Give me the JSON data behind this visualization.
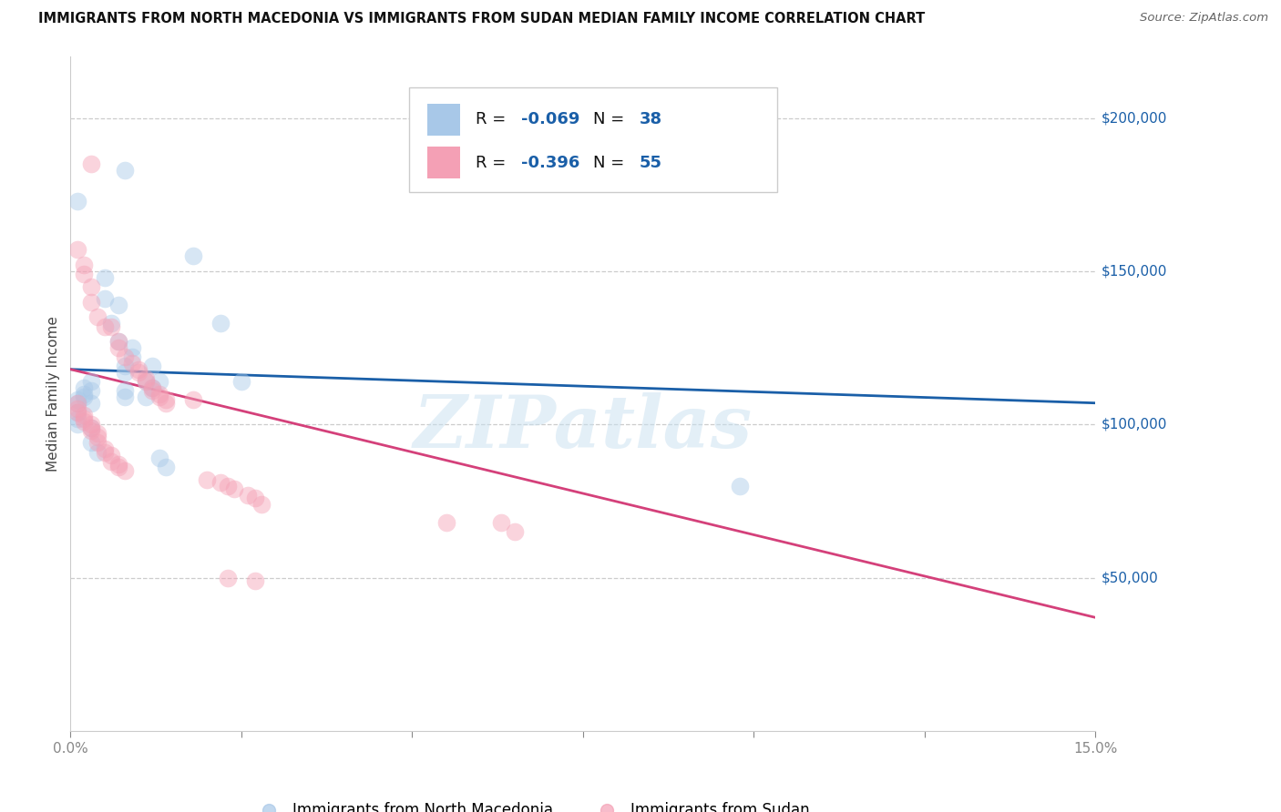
{
  "title": "IMMIGRANTS FROM NORTH MACEDONIA VS IMMIGRANTS FROM SUDAN MEDIAN FAMILY INCOME CORRELATION CHART",
  "source": "Source: ZipAtlas.com",
  "ylabel": "Median Family Income",
  "xmin": 0.0,
  "xmax": 0.15,
  "ymin": 0,
  "ymax": 220000,
  "color_blue": "#a8c8e8",
  "color_pink": "#f4a0b5",
  "line_color_blue": "#1a5fa8",
  "line_color_pink": "#d4407a",
  "watermark": "ZIPatlas",
  "legend_r_blue": "-0.069",
  "legend_n_blue": "38",
  "legend_r_pink": "-0.396",
  "legend_n_pink": "55",
  "blue_dots": [
    [
      0.001,
      173000
    ],
    [
      0.008,
      183000
    ],
    [
      0.005,
      148000
    ],
    [
      0.005,
      141000
    ],
    [
      0.007,
      139000
    ],
    [
      0.006,
      133000
    ],
    [
      0.007,
      127000
    ],
    [
      0.009,
      125000
    ],
    [
      0.009,
      122000
    ],
    [
      0.008,
      119000
    ],
    [
      0.008,
      117000
    ],
    [
      0.012,
      119000
    ],
    [
      0.011,
      114000
    ],
    [
      0.012,
      112000
    ],
    [
      0.013,
      114000
    ],
    [
      0.011,
      109000
    ],
    [
      0.008,
      111000
    ],
    [
      0.008,
      109000
    ],
    [
      0.003,
      114000
    ],
    [
      0.002,
      112000
    ],
    [
      0.003,
      111000
    ],
    [
      0.002,
      110000
    ],
    [
      0.002,
      109000
    ],
    [
      0.003,
      107000
    ],
    [
      0.001,
      108000
    ],
    [
      0.001,
      107000
    ],
    [
      0.001,
      104000
    ],
    [
      0.001,
      102000
    ],
    [
      0.001,
      100000
    ],
    [
      0.003,
      99000
    ],
    [
      0.003,
      94000
    ],
    [
      0.004,
      91000
    ],
    [
      0.013,
      89000
    ],
    [
      0.014,
      86000
    ],
    [
      0.018,
      155000
    ],
    [
      0.022,
      133000
    ],
    [
      0.025,
      114000
    ],
    [
      0.098,
      80000
    ]
  ],
  "pink_dots": [
    [
      0.003,
      185000
    ],
    [
      0.001,
      157000
    ],
    [
      0.002,
      152000
    ],
    [
      0.002,
      149000
    ],
    [
      0.003,
      145000
    ],
    [
      0.003,
      140000
    ],
    [
      0.004,
      135000
    ],
    [
      0.005,
      132000
    ],
    [
      0.006,
      132000
    ],
    [
      0.007,
      127000
    ],
    [
      0.007,
      125000
    ],
    [
      0.008,
      122000
    ],
    [
      0.009,
      120000
    ],
    [
      0.01,
      118000
    ],
    [
      0.01,
      117000
    ],
    [
      0.011,
      115000
    ],
    [
      0.011,
      114000
    ],
    [
      0.012,
      112000
    ],
    [
      0.012,
      111000
    ],
    [
      0.013,
      110000
    ],
    [
      0.013,
      109000
    ],
    [
      0.014,
      108000
    ],
    [
      0.014,
      107000
    ],
    [
      0.001,
      107000
    ],
    [
      0.001,
      105000
    ],
    [
      0.001,
      104000
    ],
    [
      0.002,
      103000
    ],
    [
      0.002,
      102000
    ],
    [
      0.002,
      101000
    ],
    [
      0.003,
      100000
    ],
    [
      0.003,
      99000
    ],
    [
      0.003,
      98000
    ],
    [
      0.004,
      97000
    ],
    [
      0.004,
      96000
    ],
    [
      0.004,
      94000
    ],
    [
      0.005,
      92000
    ],
    [
      0.005,
      91000
    ],
    [
      0.006,
      90000
    ],
    [
      0.006,
      88000
    ],
    [
      0.007,
      87000
    ],
    [
      0.007,
      86000
    ],
    [
      0.008,
      85000
    ],
    [
      0.018,
      108000
    ],
    [
      0.02,
      82000
    ],
    [
      0.022,
      81000
    ],
    [
      0.023,
      80000
    ],
    [
      0.024,
      79000
    ],
    [
      0.026,
      77000
    ],
    [
      0.027,
      76000
    ],
    [
      0.028,
      74000
    ],
    [
      0.055,
      68000
    ],
    [
      0.063,
      68000
    ],
    [
      0.023,
      50000
    ],
    [
      0.027,
      49000
    ],
    [
      0.065,
      65000
    ]
  ],
  "blue_line": [
    [
      0.0,
      0.15
    ],
    [
      118000,
      107000
    ]
  ],
  "pink_line": [
    [
      0.0,
      0.15
    ],
    [
      118000,
      37000
    ]
  ],
  "ytick_positions": [
    50000,
    100000,
    150000,
    200000
  ],
  "ytick_labels": [
    "$50,000",
    "$100,000",
    "$150,000",
    "$200,000"
  ],
  "xtick_positions": [
    0.0,
    0.025,
    0.05,
    0.075,
    0.1,
    0.125,
    0.15
  ],
  "xtick_labels": [
    "0.0%",
    "",
    "",
    "",
    "",
    "",
    "15.0%"
  ],
  "dot_size": 200,
  "dot_alpha": 0.45,
  "background_color": "#ffffff"
}
